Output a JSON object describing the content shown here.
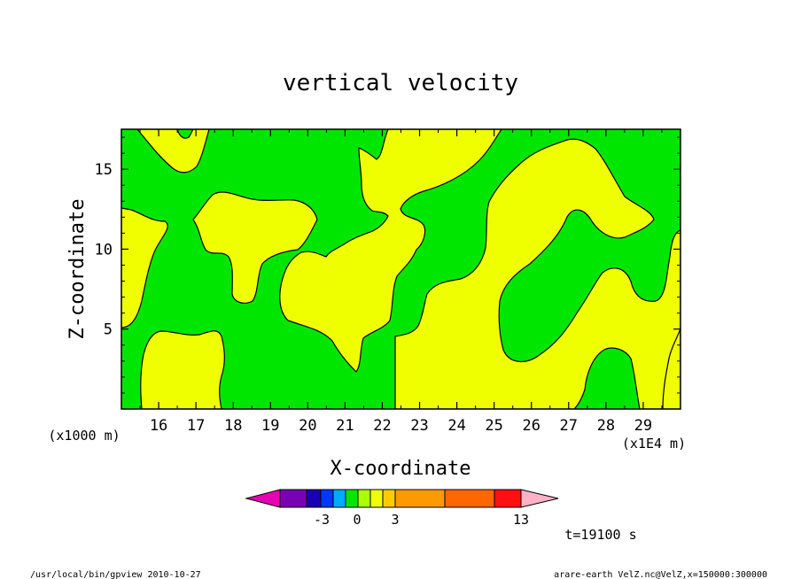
{
  "chart_data": {
    "type": "heatmap",
    "title": "vertical velocity",
    "xlabel": "X-coordinate",
    "ylabel": "Z-coordinate",
    "x_scale_note": "(x1E4 m)",
    "y_scale_note": "(x1000 m)",
    "x_ticks": [
      16,
      17,
      18,
      19,
      20,
      21,
      22,
      23,
      24,
      25,
      26,
      27,
      28,
      29
    ],
    "y_ticks": [
      5,
      10,
      15
    ],
    "xlim": [
      15.0,
      30.0
    ],
    "ylim": [
      0.0,
      17.5
    ],
    "levels": {
      "below_0": {
        "label": "< 0",
        "color": "#00e600"
      },
      "0_to_1": {
        "label": "0 to 1",
        "color": "#f0ff00"
      }
    },
    "colorbar": {
      "colors": [
        "#e800b4",
        "#7a00b4",
        "#1a00b4",
        "#0037ff",
        "#00aaff",
        "#00e600",
        "#aaff00",
        "#f0ff00",
        "#ffcc00",
        "#ff9900",
        "#ff6600",
        "#ff1010",
        "#ff7777",
        "#ffb2c8"
      ],
      "tick_labels": [
        "-3",
        "0",
        "3",
        "13"
      ]
    },
    "annotation": "t=19100 s"
  },
  "footer": {
    "left": "/usr/local/bin/gpview  2010-10-27",
    "right": "arare-earth_VelZ.nc@VelZ,x=150000:300000"
  }
}
